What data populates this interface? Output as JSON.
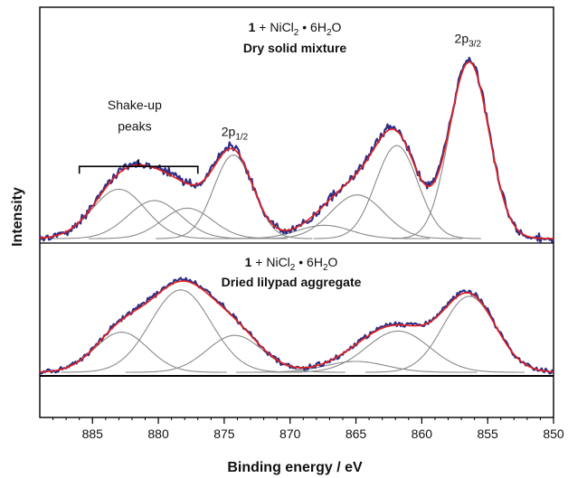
{
  "chart_data": {
    "type": "line",
    "xlabel": "Binding energy / eV",
    "ylabel": "Intensity",
    "xlim": [
      850,
      889
    ],
    "x_reversed": true,
    "xticks": [
      885,
      880,
      875,
      870,
      865,
      860,
      855,
      850
    ],
    "grid": false,
    "colors": {
      "data": "#2e2e86",
      "fit": "#e8211d",
      "component": "#8a8a8a"
    },
    "panels": [
      {
        "title_lines": [
          "1 + NiCl2 • 6H2O",
          "Dry solid mixture"
        ],
        "title_rich": {
          "prefix": "1",
          "formula_pre": " + NiCl",
          "sub1": "2",
          "formula_mid": " • 6H",
          "sub2": "2",
          "formula_post": "O",
          "line2": "Dry solid mixture"
        },
        "baseline": 0,
        "ylim": [
          0,
          1.0
        ],
        "components": [
          {
            "center": 883.0,
            "height": 0.26,
            "width": 2.0
          },
          {
            "center": 880.3,
            "height": 0.2,
            "width": 2.0
          },
          {
            "center": 877.8,
            "height": 0.16,
            "width": 1.9
          },
          {
            "center": 874.3,
            "height": 0.44,
            "width": 1.5
          },
          {
            "center": 867.4,
            "height": 0.07,
            "width": 2.0
          },
          {
            "center": 864.9,
            "height": 0.23,
            "width": 2.0
          },
          {
            "center": 861.9,
            "height": 0.49,
            "width": 1.6
          },
          {
            "center": 856.4,
            "height": 0.93,
            "width": 1.5
          }
        ],
        "annotations": [
          {
            "text": "Shake-up",
            "x": 881.8,
            "y": 0.68
          },
          {
            "text": "peaks",
            "x": 881.8,
            "y": 0.57
          },
          {
            "text_main": "2p",
            "text_sub": "1/2",
            "x": 874.2,
            "y": 0.54
          },
          {
            "text_main": "2p",
            "text_sub": "3/2",
            "x": 856.5,
            "y": 1.03
          }
        ],
        "bracket": {
          "x_from": 886.0,
          "x_to": 877.0,
          "y": 0.38
        }
      },
      {
        "title_lines": [
          "1 + NiCl2 • 6H2O",
          "Dried lilypad aggregate"
        ],
        "title_rich": {
          "prefix": "1",
          "formula_pre": " + NiCl",
          "sub1": "2",
          "formula_mid": " • 6H",
          "sub2": "2",
          "formula_post": "O",
          "line2": "Dried lilypad aggregate"
        },
        "baseline": 0,
        "ylim": [
          0,
          1.0
        ],
        "components": [
          {
            "center": 882.8,
            "height": 0.37,
            "width": 2.0
          },
          {
            "center": 878.3,
            "height": 0.76,
            "width": 2.3
          },
          {
            "center": 874.2,
            "height": 0.34,
            "width": 2.1
          },
          {
            "center": 865.0,
            "height": 0.1,
            "width": 2.3
          },
          {
            "center": 861.8,
            "height": 0.38,
            "width": 2.4
          },
          {
            "center": 856.4,
            "height": 0.7,
            "width": 2.0
          }
        ]
      }
    ]
  }
}
